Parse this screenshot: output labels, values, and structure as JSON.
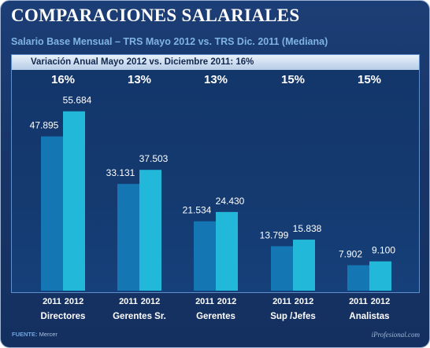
{
  "header": {
    "title": "COMPARACIONES SALARIALES",
    "subtitle": "Salario Base Mensual –  TRS Mayo 2012 vs. TRS Dic. 2011 (Mediana)",
    "banner": "Variación Anual Mayo 2012 vs. Diciembre 2011: 16%"
  },
  "footer": {
    "source_label": "FUENTE:",
    "source_value": "Mercer",
    "brand": "iProfesional.com"
  },
  "colors": {
    "series_2011": "#1476b3",
    "series_2012": "#22b8da",
    "value_label": "#ffffff",
    "axis_label": "#ffffff"
  },
  "chart_data": {
    "type": "bar",
    "title": "COMPARACIONES SALARIALES",
    "categories": [
      "Directores",
      "Gerentes Sr.",
      "Gerentes",
      "Sup /Jefes",
      "Analistas"
    ],
    "series": [
      {
        "name": "2011",
        "values": [
          47895,
          33131,
          21534,
          13799,
          7902
        ],
        "labels": [
          "47.895",
          "33.131",
          "21.534",
          "13.799",
          "7.902"
        ]
      },
      {
        "name": "2012",
        "values": [
          55684,
          37503,
          24430,
          15838,
          9100
        ],
        "labels": [
          "55.684",
          "37.503",
          "24.430",
          "15.838",
          "9.100"
        ]
      }
    ],
    "percent_changes": [
      "16%",
      "13%",
      "13%",
      "15%",
      "15%"
    ],
    "ylim": [
      0,
      60000
    ],
    "grid": false,
    "legend": "none"
  }
}
